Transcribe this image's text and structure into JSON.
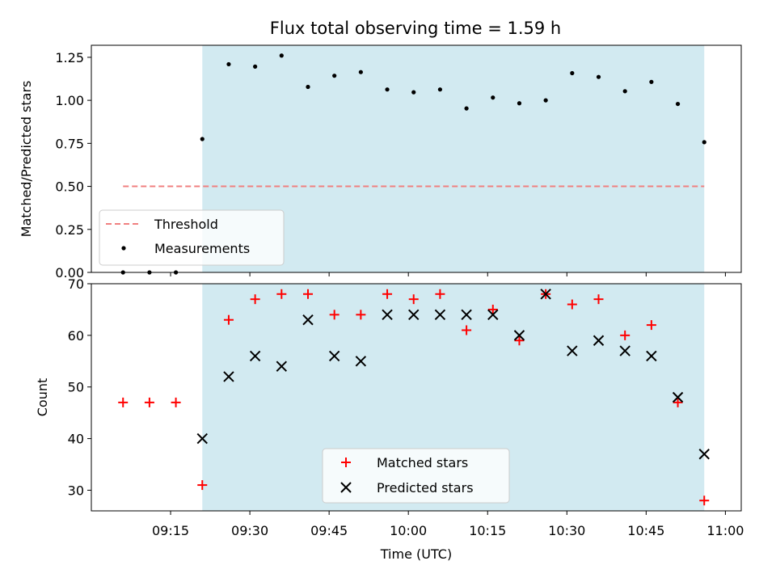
{
  "figure": {
    "title": "Flux total observing time = 1.59 h"
  },
  "colors": {
    "shade": "#add8e6",
    "threshold": "#f08080",
    "measurement": "#000000",
    "matched": "#ff0000",
    "predicted": "#000000"
  },
  "chart_data": [
    {
      "type": "scatter",
      "panel": "top",
      "ylabel": "Matched/Predicted stars",
      "xlabel": "",
      "ylim": [
        0,
        1.32
      ],
      "yticks": [
        "0.00",
        "0.25",
        "0.50",
        "0.75",
        "1.00",
        "1.25"
      ],
      "xrange_minutes": [
        "09:00",
        "11:03"
      ],
      "shaded_region": [
        "09:21",
        "10:56"
      ],
      "threshold": {
        "name": "Threshold",
        "y": 0.5,
        "x": [
          "09:06",
          "10:56"
        ],
        "style": "dashed"
      },
      "series": [
        {
          "name": "Measurements",
          "x": [
            "09:06",
            "09:11",
            "09:16",
            "09:21",
            "09:26",
            "09:31",
            "09:36",
            "09:41",
            "09:46",
            "09:51",
            "09:56",
            "10:01",
            "10:06",
            "10:11",
            "10:16",
            "10:21",
            "10:26",
            "10:31",
            "10:36",
            "10:41",
            "10:46",
            "10:51",
            "10:56"
          ],
          "y": [
            0.0,
            0.0,
            0.0,
            0.775,
            1.21,
            1.196,
            1.26,
            1.078,
            1.143,
            1.164,
            1.063,
            1.047,
            1.063,
            0.953,
            1.016,
            0.983,
            1.0,
            1.158,
            1.136,
            1.053,
            1.107,
            0.979,
            0.757
          ]
        }
      ],
      "legend": {
        "placement": "lower-left",
        "entries": [
          "Threshold",
          "Measurements"
        ]
      }
    },
    {
      "type": "scatter",
      "panel": "bottom",
      "ylabel": "Count",
      "xlabel": "Time (UTC)",
      "ylim": [
        26,
        70
      ],
      "yticks": [
        "30",
        "40",
        "50",
        "60",
        "70"
      ],
      "xticks": [
        "09:15",
        "09:30",
        "09:45",
        "10:00",
        "10:15",
        "10:30",
        "10:45",
        "11:00"
      ],
      "shaded_region": [
        "09:21",
        "10:56"
      ],
      "series": [
        {
          "name": "Matched stars",
          "marker": "plus",
          "x": [
            "09:06",
            "09:11",
            "09:16",
            "09:21",
            "09:26",
            "09:31",
            "09:36",
            "09:41",
            "09:46",
            "09:51",
            "09:56",
            "10:01",
            "10:06",
            "10:11",
            "10:16",
            "10:21",
            "10:26",
            "10:31",
            "10:36",
            "10:41",
            "10:46",
            "10:51",
            "10:56"
          ],
          "y": [
            47,
            47,
            47,
            31,
            63,
            67,
            68,
            68,
            64,
            64,
            68,
            67,
            68,
            61,
            65,
            59,
            68,
            66,
            67,
            60,
            62,
            47,
            28
          ]
        },
        {
          "name": "Predicted stars",
          "marker": "x",
          "x": [
            "09:21",
            "09:26",
            "09:31",
            "09:36",
            "09:41",
            "09:46",
            "09:51",
            "09:56",
            "10:01",
            "10:06",
            "10:11",
            "10:16",
            "10:21",
            "10:26",
            "10:31",
            "10:36",
            "10:41",
            "10:46",
            "10:51",
            "10:56"
          ],
          "y": [
            40,
            52,
            56,
            54,
            63,
            56,
            55,
            64,
            64,
            64,
            64,
            64,
            60,
            68,
            57,
            59,
            57,
            56,
            48,
            37
          ]
        }
      ],
      "legend": {
        "placement": "lower-center",
        "entries": [
          "Matched stars",
          "Predicted stars"
        ]
      }
    }
  ]
}
